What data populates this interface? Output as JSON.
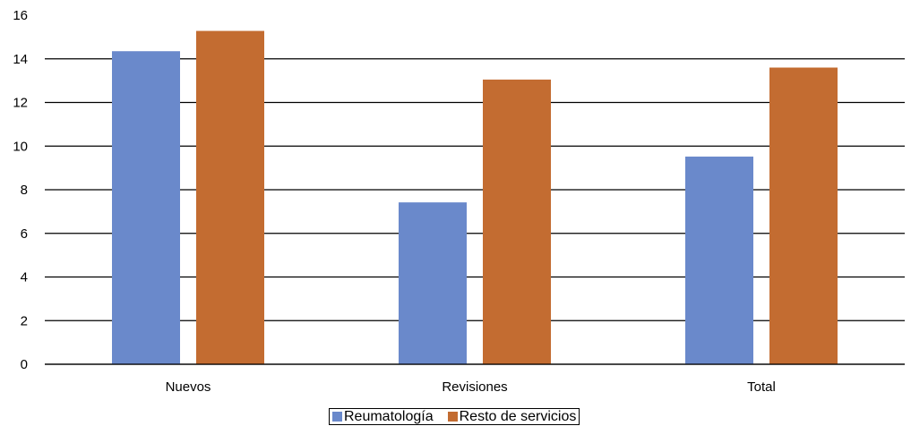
{
  "chart_data": {
    "type": "bar",
    "categories": [
      "Nuevos",
      "Revisiones",
      "Total"
    ],
    "series": [
      {
        "name": "Reumatología",
        "values": [
          14.35,
          7.42,
          9.52
        ],
        "color": "#6a89cb"
      },
      {
        "name": "Resto de servicios",
        "values": [
          15.28,
          13.05,
          13.6
        ],
        "color": "#c36c31"
      }
    ],
    "ylim": [
      0,
      16
    ],
    "yticks": [
      0,
      2,
      4,
      6,
      8,
      10,
      12,
      14,
      16
    ],
    "grid": true,
    "legend_position": "bottom",
    "title": "",
    "xlabel": "",
    "ylabel": ""
  }
}
